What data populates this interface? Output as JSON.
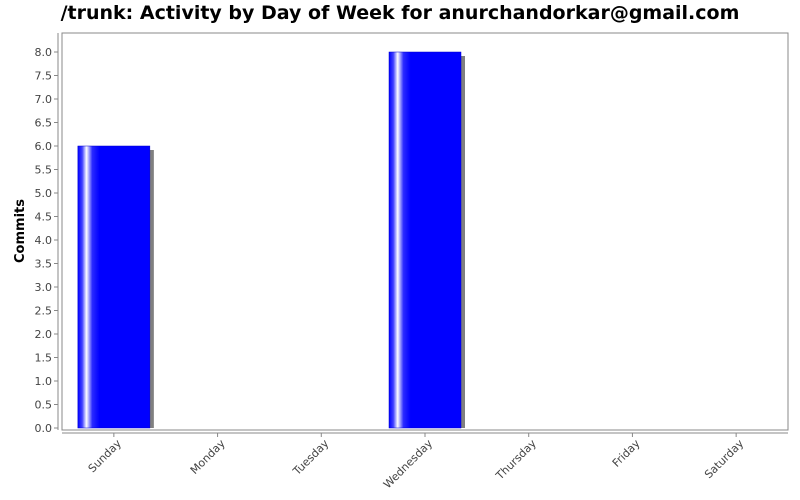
{
  "chart_data": {
    "type": "bar",
    "title": "/trunk: Activity by Day of Week for anurchandorkar@gmail.com",
    "xlabel": "",
    "ylabel": "Commits",
    "categories": [
      "Sunday",
      "Monday",
      "Tuesday",
      "Wednesday",
      "Thursday",
      "Friday",
      "Saturday"
    ],
    "values": [
      6,
      0,
      0,
      8,
      0,
      0,
      0
    ],
    "ylim": [
      0,
      8.0
    ],
    "yticks": [
      "0.0",
      "0.5",
      "1.0",
      "1.5",
      "2.0",
      "2.5",
      "3.0",
      "3.5",
      "4.0",
      "4.5",
      "5.0",
      "5.5",
      "6.0",
      "6.5",
      "7.0",
      "7.5",
      "8.0"
    ],
    "grid": false,
    "legend": "none",
    "colors": {
      "bar": "#0000ff",
      "bar_highlight": "#ffffff",
      "shadow": "#808080"
    }
  }
}
